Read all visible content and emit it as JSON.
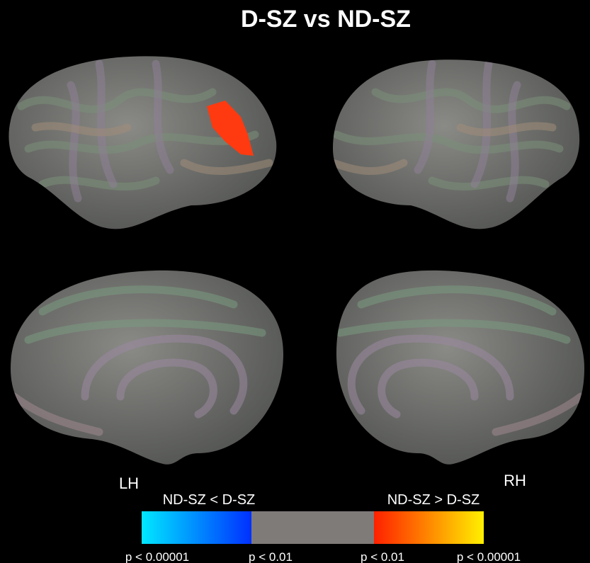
{
  "title": "D-SZ vs ND-SZ",
  "hemispheres": {
    "left": "LH",
    "right": "RH"
  },
  "colorbar": {
    "left_label": "ND-SZ < D-SZ",
    "right_label": "ND-SZ > D-SZ",
    "ticks": [
      "p < 0.00001",
      "p < 0.01",
      "p < 0.01",
      "p < 0.00001"
    ]
  }
}
